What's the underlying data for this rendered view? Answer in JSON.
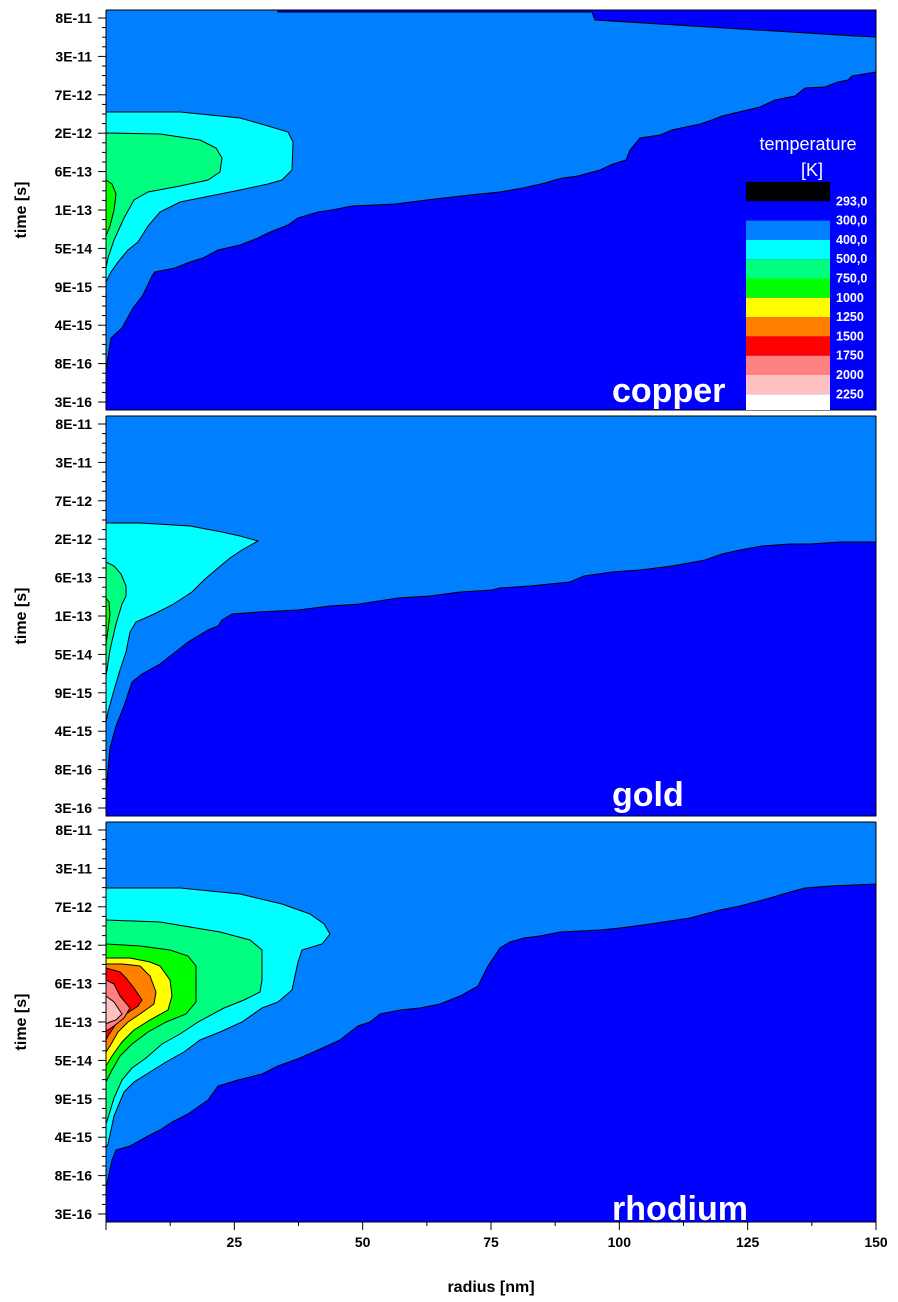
{
  "chart_data": {
    "type": "contour",
    "x_axis": {
      "label": "radius [nm]",
      "range": [
        0,
        150
      ],
      "ticks": [
        25,
        50,
        75,
        100,
        125,
        150
      ]
    },
    "y_axis": {
      "label": "time [s]",
      "scale": "log",
      "tick_labels": [
        "8E-11",
        "3E-11",
        "7E-12",
        "2E-12",
        "6E-13",
        "1E-13",
        "5E-14",
        "9E-15",
        "4E-15",
        "8E-16",
        "3E-16"
      ]
    },
    "legend": {
      "title_line1": "temperature",
      "title_line2": "[K]",
      "placement": "right, inside top panel",
      "levels": [
        {
          "value": "293,0",
          "color": "#000000"
        },
        {
          "value": "300,0",
          "color": "#0000ff"
        },
        {
          "value": "400,0",
          "color": "#0080ff"
        },
        {
          "value": "500,0",
          "color": "#00ffff"
        },
        {
          "value": "750,0",
          "color": "#00ff80"
        },
        {
          "value": "1000",
          "color": "#00ff00"
        },
        {
          "value": "1250",
          "color": "#ffff00"
        },
        {
          "value": "1500",
          "color": "#ff8000"
        },
        {
          "value": "1750",
          "color": "#ff0000"
        },
        {
          "value": "2000",
          "color": "#ff8080"
        },
        {
          "value": "2250",
          "color": "#ffc0c0"
        }
      ],
      "extra_band_color": "#ffffff"
    },
    "panels": [
      {
        "label": "copper",
        "regions": [
          {
            "level": "400-500 K",
            "color": "#00ffff",
            "radius_max_nm": 37,
            "time_max": "2E-12"
          },
          {
            "level": "500-750 K",
            "color": "#00ff80",
            "radius_max_nm": 22,
            "time_max": "1E-12"
          },
          {
            "level": "750-1000 K",
            "color": "#00ff00",
            "radius_max_nm": 1.5,
            "time_max": "1E-13"
          }
        ]
      },
      {
        "label": "gold",
        "regions": [
          {
            "level": "400-500 K",
            "color": "#00ffff",
            "radius_max_nm": 30,
            "time_max": "2E-12"
          },
          {
            "level": "500-750 K",
            "color": "#00ff80",
            "radius_max_nm": 4,
            "time_max": "6E-13"
          },
          {
            "level": "750-1000 K",
            "color": "#00ff00",
            "radius_max_nm": 1,
            "time_max": "2E-13"
          }
        ]
      },
      {
        "label": "rhodium",
        "regions": [
          {
            "level": "400-500 K",
            "color": "#00ffff",
            "radius_max_nm": 44,
            "time_max": "5E-12"
          },
          {
            "level": "500-750 K",
            "color": "#00ff80",
            "radius_max_nm": 28,
            "time_max": "2E-12"
          },
          {
            "level": "750-1000 K",
            "color": "#00ff00",
            "radius_max_nm": 18,
            "time_max": "1E-12"
          },
          {
            "level": "1000-1250 K",
            "color": "#ffff00",
            "radius_max_nm": 13,
            "time_max": "6E-13"
          },
          {
            "level": "1250-1500 K",
            "color": "#ff8000",
            "radius_max_nm": 10,
            "time_max": "6E-13"
          },
          {
            "level": "1500-1750 K",
            "color": "#ff0000",
            "radius_max_nm": 7,
            "time_max": "6E-13"
          },
          {
            "level": "1750-2000 K",
            "color": "#ff8080",
            "radius_max_nm": 4.5,
            "time_max": "3E-13"
          },
          {
            "level": "2000-2250 K",
            "color": "#ffc0c0",
            "radius_max_nm": 2.5,
            "time_max": "2E-13"
          }
        ]
      }
    ]
  }
}
